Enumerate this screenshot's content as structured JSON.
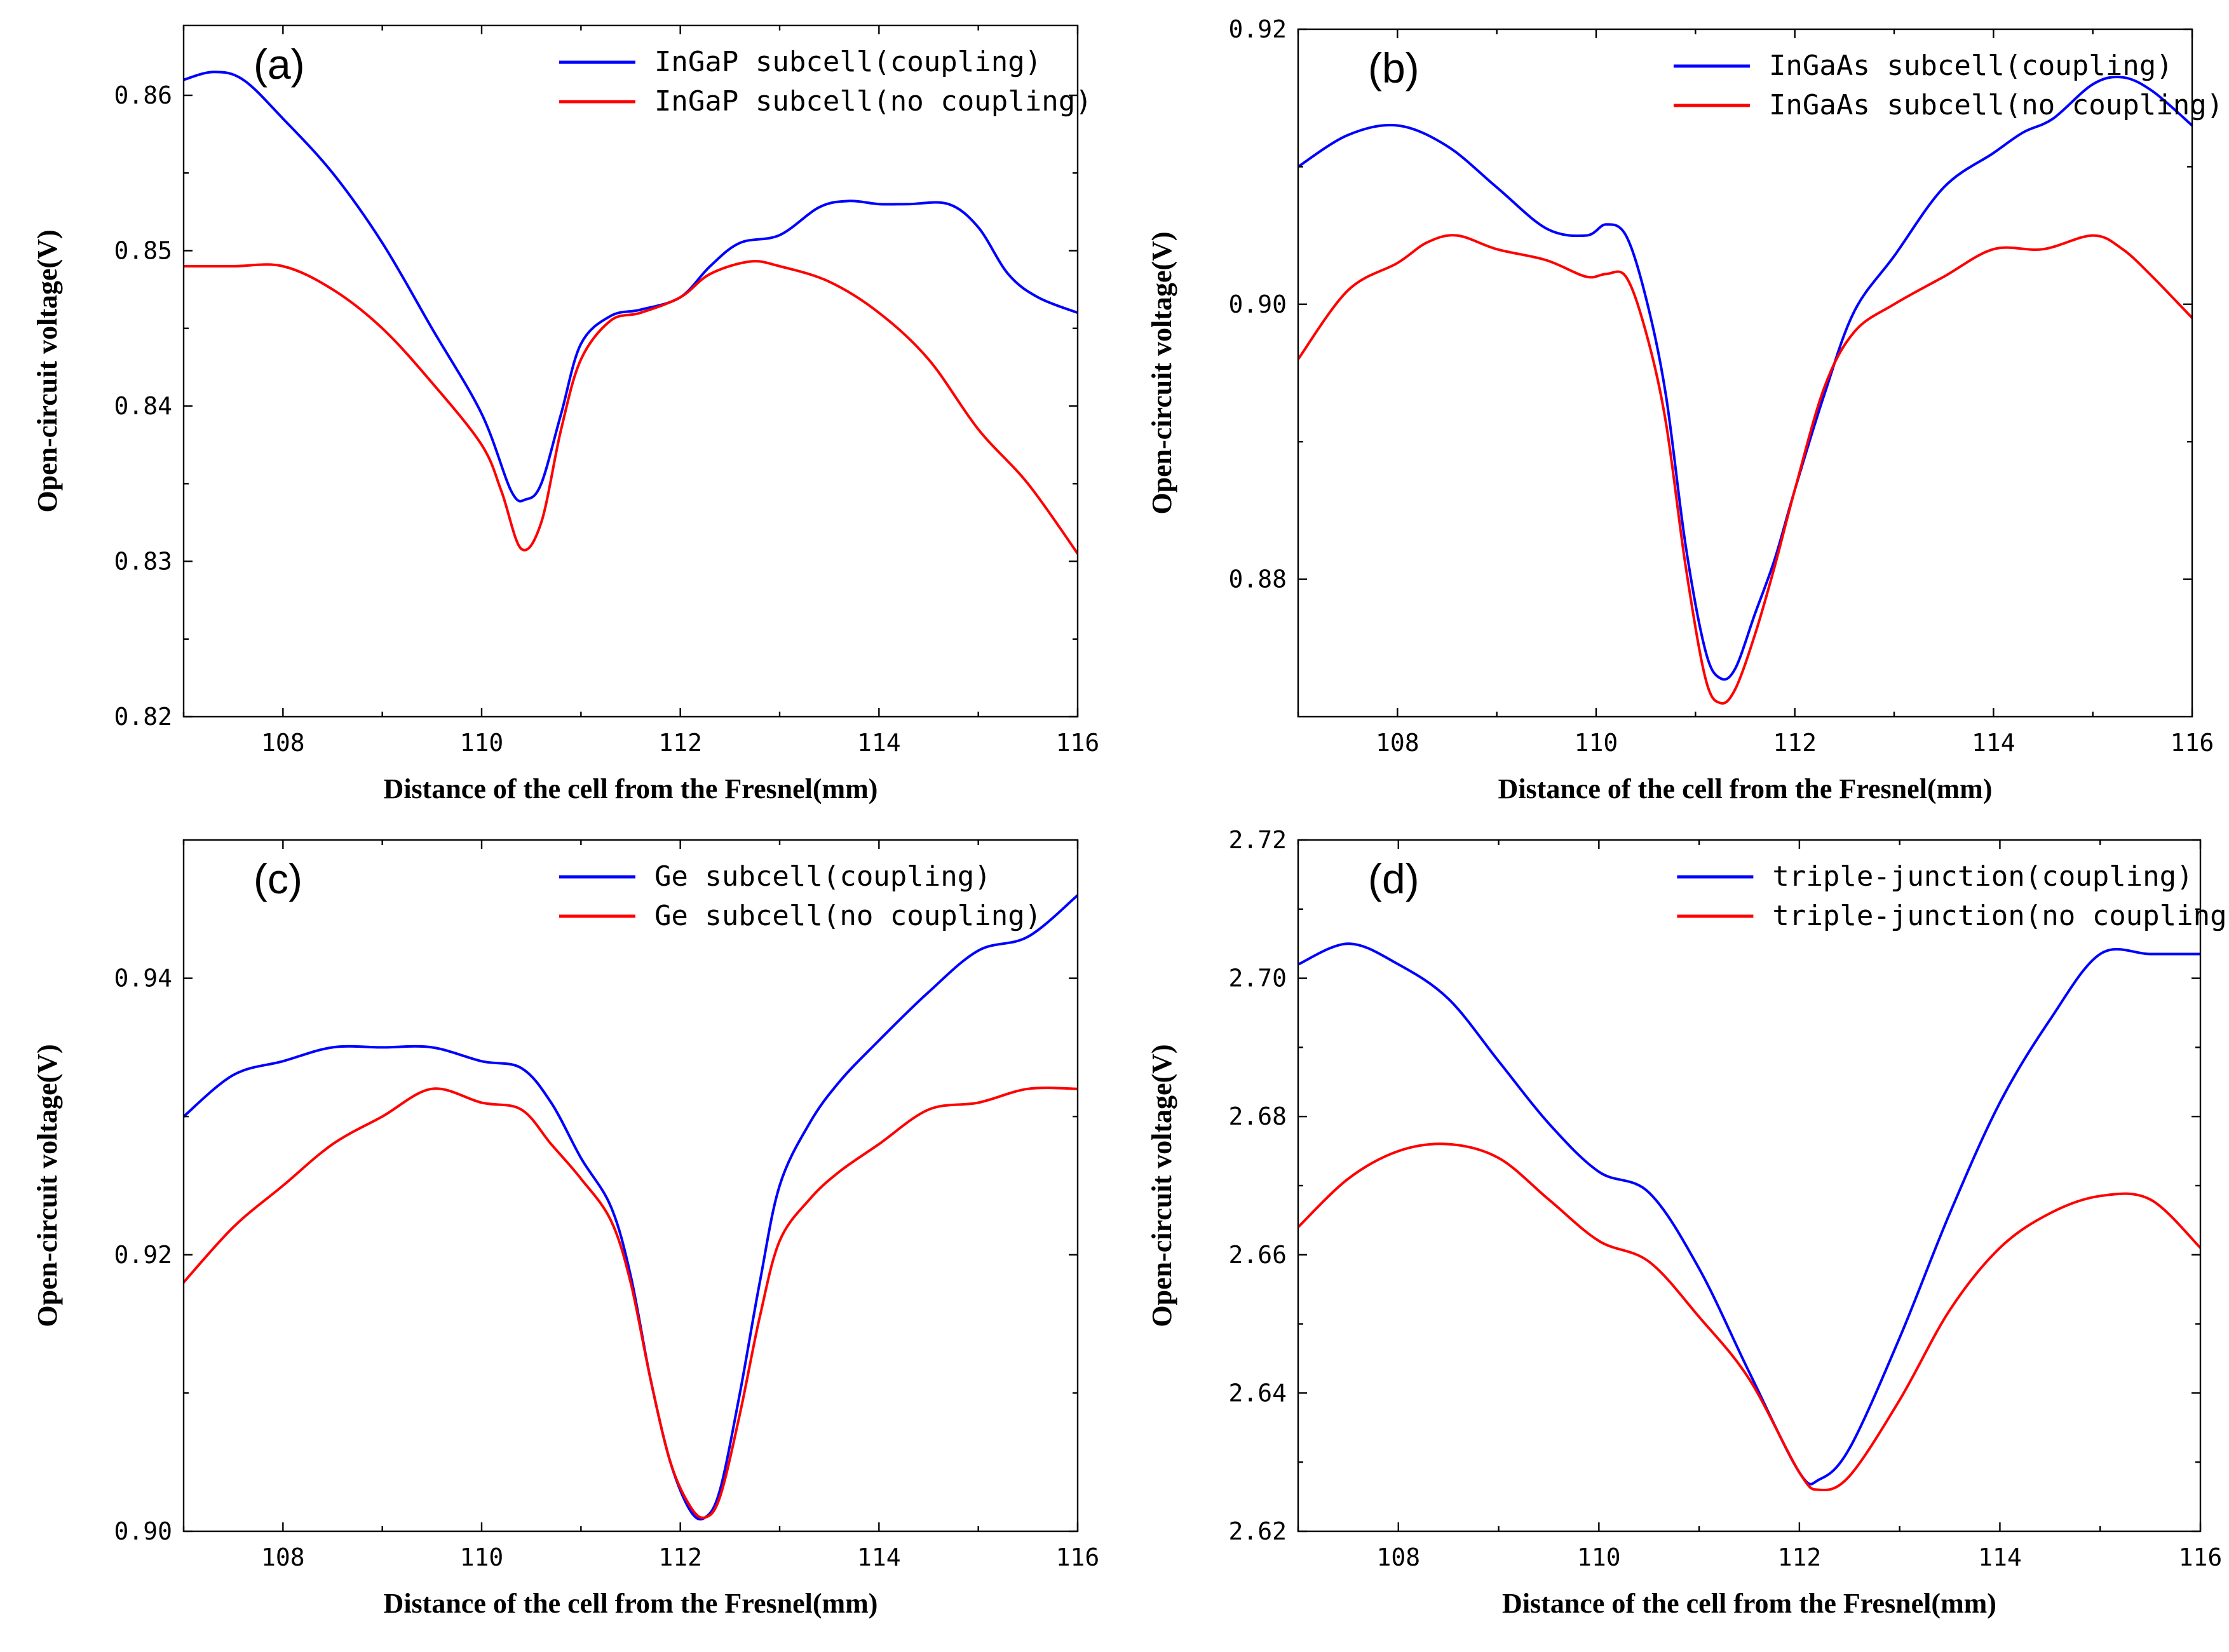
{
  "chart_data": [
    {
      "type": "line",
      "panel_label": "(a)",
      "xlabel": "Distance of the cell from the Fresnel(mm)",
      "ylabel": "Open-circuit voltage(V)",
      "xlim": [
        107,
        116
      ],
      "ylim": [
        0.82,
        0.8645
      ],
      "xticks": [
        108,
        110,
        112,
        114,
        116
      ],
      "xtick_labels": [
        "108",
        "110",
        "112",
        "114",
        "116"
      ],
      "yticks": [
        0.82,
        0.83,
        0.84,
        0.85,
        0.86
      ],
      "ytick_labels": [
        "0.82",
        "0.83",
        "0.84",
        "0.85",
        "0.86"
      ],
      "legend_position": "top-right",
      "series": [
        {
          "name": "InGaP subcell(coupling)",
          "color": "#0000ff",
          "x": [
            107,
            107.3,
            107.6,
            108,
            108.5,
            109,
            109.5,
            110,
            110.3,
            110.45,
            110.6,
            110.8,
            111,
            111.3,
            111.6,
            112,
            112.3,
            112.6,
            113,
            113.4,
            113.7,
            114,
            114.3,
            114.7,
            115,
            115.3,
            115.6,
            116
          ],
          "y": [
            0.861,
            0.8615,
            0.861,
            0.8585,
            0.855,
            0.8505,
            0.845,
            0.8395,
            0.8345,
            0.834,
            0.835,
            0.8395,
            0.844,
            0.8458,
            0.8462,
            0.847,
            0.849,
            0.8505,
            0.851,
            0.8528,
            0.8532,
            0.853,
            0.853,
            0.853,
            0.8515,
            0.8485,
            0.847,
            0.846
          ]
        },
        {
          "name": "InGaP subcell(no coupling)",
          "color": "#ff0000",
          "x": [
            107,
            107.5,
            108,
            108.5,
            109,
            109.5,
            110,
            110.2,
            110.4,
            110.6,
            110.8,
            111,
            111.3,
            111.6,
            112,
            112.3,
            112.7,
            113,
            113.5,
            114,
            114.5,
            115,
            115.5,
            116
          ],
          "y": [
            0.849,
            0.849,
            0.849,
            0.8475,
            0.845,
            0.8415,
            0.8375,
            0.8345,
            0.8308,
            0.8325,
            0.8385,
            0.843,
            0.8455,
            0.846,
            0.847,
            0.8485,
            0.8493,
            0.849,
            0.848,
            0.846,
            0.843,
            0.8385,
            0.835,
            0.8305
          ]
        }
      ]
    },
    {
      "type": "line",
      "panel_label": "(b)",
      "xlabel": "Distance of the cell from the Fresnel(mm)",
      "ylabel": "Open-circuit voltage(V)",
      "xlim": [
        107,
        116
      ],
      "ylim": [
        0.87,
        0.92
      ],
      "xticks": [
        108,
        110,
        112,
        114,
        116
      ],
      "xtick_labels": [
        "108",
        "110",
        "112",
        "114",
        "116"
      ],
      "yticks": [
        0.88,
        0.9,
        0.92
      ],
      "ytick_labels": [
        "0.88",
        "0.90",
        "0.92"
      ],
      "legend_position": "top-right",
      "series": [
        {
          "name": "InGaAs subcell(coupling)",
          "color": "#0000ff",
          "x": [
            107,
            107.5,
            108,
            108.5,
            109,
            109.5,
            109.9,
            110.1,
            110.3,
            110.5,
            110.7,
            110.9,
            111.1,
            111.25,
            111.4,
            111.6,
            111.8,
            112,
            112.3,
            112.6,
            113,
            113.5,
            114,
            114.3,
            114.6,
            115,
            115.3,
            115.6,
            116
          ],
          "y": [
            0.91,
            0.9123,
            0.913,
            0.9115,
            0.9085,
            0.9055,
            0.905,
            0.9058,
            0.905,
            0.9005,
            0.8935,
            0.8825,
            0.8748,
            0.8728,
            0.8735,
            0.8775,
            0.8815,
            0.8865,
            0.8935,
            0.8995,
            0.9035,
            0.9085,
            0.911,
            0.9125,
            0.9135,
            0.916,
            0.9165,
            0.9155,
            0.913
          ]
        },
        {
          "name": "InGaAs subcell(no coupling)",
          "color": "#ff0000",
          "x": [
            107,
            107.5,
            108,
            108.3,
            108.6,
            109,
            109.5,
            109.9,
            110.1,
            110.3,
            110.5,
            110.7,
            110.9,
            111.1,
            111.25,
            111.4,
            111.6,
            111.8,
            112,
            112.3,
            112.6,
            113,
            113.5,
            114,
            114.5,
            115,
            115.3,
            115.6,
            116
          ],
          "y": [
            0.896,
            0.901,
            0.903,
            0.9045,
            0.905,
            0.904,
            0.9032,
            0.902,
            0.9022,
            0.902,
            0.898,
            0.8915,
            0.881,
            0.8728,
            0.871,
            0.872,
            0.876,
            0.881,
            0.8865,
            0.894,
            0.898,
            0.9,
            0.902,
            0.904,
            0.904,
            0.905,
            0.904,
            0.902,
            0.899
          ]
        }
      ]
    },
    {
      "type": "line",
      "panel_label": "(c)",
      "xlabel": "Distance of the cell from the Fresnel(mm)",
      "ylabel": "Open-circuit voltage(V)",
      "xlim": [
        107,
        116
      ],
      "ylim": [
        0.9,
        0.95
      ],
      "xticks": [
        108,
        110,
        112,
        114,
        116
      ],
      "xtick_labels": [
        "108",
        "110",
        "112",
        "114",
        "116"
      ],
      "yticks": [
        0.9,
        0.92,
        0.94
      ],
      "ytick_labels": [
        "0.90",
        "0.92",
        "0.94"
      ],
      "legend_position": "top-right",
      "series": [
        {
          "name": "Ge subcell(coupling)",
          "color": "#0000ff",
          "x": [
            107,
            107.5,
            108,
            108.5,
            109,
            109.5,
            110,
            110.4,
            110.7,
            111,
            111.3,
            111.5,
            111.7,
            111.9,
            112.1,
            112.25,
            112.4,
            112.6,
            112.8,
            113,
            113.3,
            113.6,
            114,
            114.5,
            115,
            115.5,
            116
          ],
          "y": [
            0.93,
            0.933,
            0.934,
            0.935,
            0.935,
            0.935,
            0.934,
            0.9335,
            0.931,
            0.927,
            0.9235,
            0.9185,
            0.911,
            0.905,
            0.9015,
            0.901,
            0.903,
            0.91,
            0.918,
            0.925,
            0.9295,
            0.9325,
            0.9355,
            0.939,
            0.942,
            0.943,
            0.946
          ]
        },
        {
          "name": "Ge subcell(no coupling)",
          "color": "#ff0000",
          "x": [
            107,
            107.5,
            108,
            108.5,
            109,
            109.5,
            110,
            110.4,
            110.7,
            111,
            111.3,
            111.5,
            111.7,
            111.9,
            112.1,
            112.25,
            112.4,
            112.6,
            112.8,
            113,
            113.3,
            113.6,
            114,
            114.5,
            115,
            115.5,
            116
          ],
          "y": [
            0.918,
            0.922,
            0.925,
            0.928,
            0.93,
            0.932,
            0.931,
            0.9305,
            0.928,
            0.9255,
            0.9225,
            0.918,
            0.911,
            0.905,
            0.9018,
            0.901,
            0.9025,
            0.9085,
            0.9155,
            0.921,
            0.924,
            0.926,
            0.928,
            0.9305,
            0.931,
            0.932,
            0.932
          ]
        }
      ]
    },
    {
      "type": "line",
      "panel_label": "(d)",
      "xlabel": "Distance of the cell from the Fresnel(mm)",
      "ylabel": "Open-circuit voltage(V)",
      "xlim": [
        107,
        116
      ],
      "ylim": [
        2.62,
        2.72
      ],
      "xticks": [
        108,
        110,
        112,
        114,
        116
      ],
      "xtick_labels": [
        "108",
        "110",
        "112",
        "114",
        "116"
      ],
      "yticks": [
        2.62,
        2.64,
        2.66,
        2.68,
        2.7,
        2.72
      ],
      "ytick_labels": [
        "2.62",
        "2.64",
        "2.66",
        "2.68",
        "2.70",
        "2.72"
      ],
      "legend_position": "top-right",
      "series": [
        {
          "name": "triple-junction(coupling)",
          "color": "#0000ff",
          "x": [
            107,
            107.5,
            108,
            108.5,
            109,
            109.5,
            110,
            110.5,
            111,
            111.5,
            112,
            112.2,
            112.5,
            113,
            113.5,
            114,
            114.5,
            115,
            115.5,
            116
          ],
          "y": [
            2.702,
            2.705,
            2.702,
            2.697,
            2.688,
            2.679,
            2.672,
            2.669,
            2.658,
            2.643,
            2.6285,
            2.6275,
            2.632,
            2.648,
            2.666,
            2.682,
            2.694,
            2.7035,
            2.7035,
            2.7035
          ]
        },
        {
          "name": "triple-junction(no coupling)",
          "color": "#ff0000",
          "x": [
            107,
            107.5,
            108,
            108.5,
            109,
            109.5,
            110,
            110.5,
            111,
            111.5,
            112,
            112.2,
            112.5,
            113,
            113.5,
            114,
            114.5,
            115,
            115.5,
            116
          ],
          "y": [
            2.664,
            2.671,
            2.675,
            2.676,
            2.674,
            2.668,
            2.662,
            2.659,
            2.651,
            2.642,
            2.6285,
            2.626,
            2.628,
            2.639,
            2.652,
            2.661,
            2.666,
            2.6685,
            2.668,
            2.661
          ]
        }
      ]
    }
  ]
}
